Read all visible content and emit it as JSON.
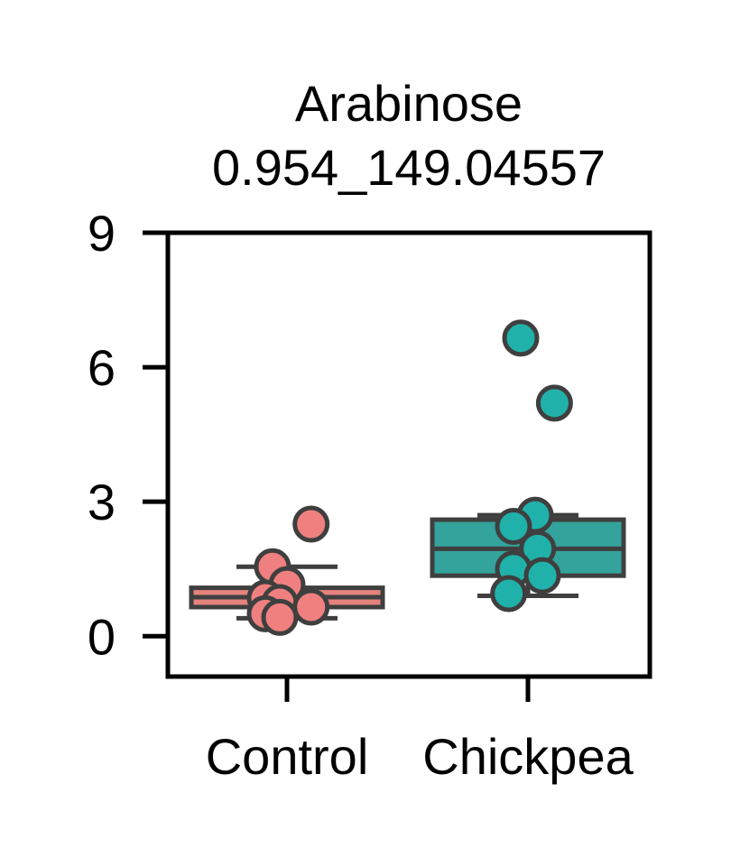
{
  "chart_data": {
    "type": "box",
    "title": "Arabinose",
    "subtitle": "0.954_149.04557",
    "xlabel": "",
    "ylabel": "",
    "ylim": [
      -0.9,
      9
    ],
    "yticks": [
      0,
      3,
      6,
      9
    ],
    "grid": false,
    "legend": "none",
    "categories": [
      "Control",
      "Chickpea"
    ],
    "series": [
      {
        "category": "Control",
        "color": "#f08080",
        "box": {
          "q1": 0.65,
          "median": 0.87,
          "q3": 1.08,
          "whisker_low": 0.4,
          "whisker_high": 1.55
        },
        "points": [
          {
            "x_offset": -0.06,
            "y": 1.55
          },
          {
            "x_offset": 0.1,
            "y": 2.5
          },
          {
            "x_offset": 0.0,
            "y": 1.15
          },
          {
            "x_offset": -0.09,
            "y": 0.85
          },
          {
            "x_offset": -0.03,
            "y": 0.75
          },
          {
            "x_offset": 0.1,
            "y": 0.65
          },
          {
            "x_offset": -0.09,
            "y": 0.5
          },
          {
            "x_offset": -0.03,
            "y": 0.42
          }
        ]
      },
      {
        "category": "Chickpea",
        "color": "#20b2aa",
        "box": {
          "q1": 1.35,
          "median": 1.95,
          "q3": 2.6,
          "whisker_low": 0.9,
          "whisker_high": 2.7
        },
        "points": [
          {
            "x_offset": -0.03,
            "y": 6.65
          },
          {
            "x_offset": 0.11,
            "y": 5.2
          },
          {
            "x_offset": 0.03,
            "y": 2.7
          },
          {
            "x_offset": -0.06,
            "y": 2.45
          },
          {
            "x_offset": 0.04,
            "y": 1.95
          },
          {
            "x_offset": -0.06,
            "y": 1.5
          },
          {
            "x_offset": 0.06,
            "y": 1.35
          },
          {
            "x_offset": -0.08,
            "y": 0.95
          }
        ]
      }
    ]
  },
  "style": {
    "box_edge": "#3f3f3f",
    "control_box_fill": "#e4837c",
    "chickpea_box_fill": "#33a39b",
    "axis_color": "#000000"
  }
}
